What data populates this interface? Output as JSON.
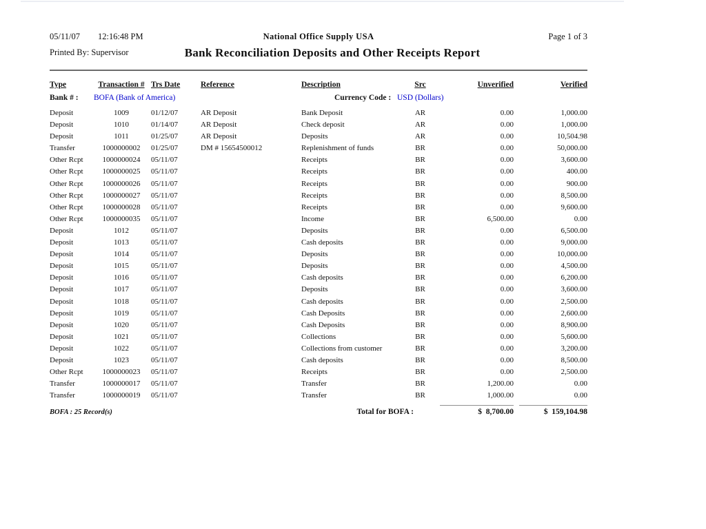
{
  "report": {
    "date": "05/11/07",
    "time": "12:16:48 PM",
    "company": "National Office Supply USA",
    "page": "Page 1 of 3",
    "printed_by": "Printed By: Supervisor",
    "title": "Bank Reconciliation Deposits and Other Receipts Report"
  },
  "colors": {
    "link_blue": "#0000cc",
    "text": "#111111"
  },
  "table": {
    "columns": {
      "type": "Type",
      "txn": "Transaction #",
      "date": "Trs Date",
      "ref": "Reference",
      "desc": "Description",
      "src": "Src",
      "unverified": "Unverified",
      "verified": "Verified"
    },
    "bank_label": "Bank # :",
    "bank_value": "BOFA (Bank of America)",
    "currency_label": "Currency Code :",
    "currency_value": "USD (Dollars)",
    "rows": [
      {
        "type": "Deposit",
        "txn": "1009",
        "date": "01/12/07",
        "ref": "AR Deposit",
        "desc": "Bank Deposit",
        "src": "AR",
        "unverified": "0.00",
        "verified": "1,000.00"
      },
      {
        "type": "Deposit",
        "txn": "1010",
        "date": "01/14/07",
        "ref": "AR Deposit",
        "desc": "Check deposit",
        "src": "AR",
        "unverified": "0.00",
        "verified": "1,000.00"
      },
      {
        "type": "Deposit",
        "txn": "1011",
        "date": "01/25/07",
        "ref": "AR Deposit",
        "desc": "Deposits",
        "src": "AR",
        "unverified": "0.00",
        "verified": "10,504.98"
      },
      {
        "type": "Transfer",
        "txn": "1000000002",
        "date": "01/25/07",
        "ref": "DM # 15654500012",
        "desc": "Replenishment of funds",
        "src": "BR",
        "unverified": "0.00",
        "verified": "50,000.00"
      },
      {
        "type": "Other Rcpt",
        "txn": "1000000024",
        "date": "05/11/07",
        "ref": "",
        "desc": "Receipts",
        "src": "BR",
        "unverified": "0.00",
        "verified": "3,600.00"
      },
      {
        "type": "Other Rcpt",
        "txn": "1000000025",
        "date": "05/11/07",
        "ref": "",
        "desc": "Receipts",
        "src": "BR",
        "unverified": "0.00",
        "verified": "400.00"
      },
      {
        "type": "Other Rcpt",
        "txn": "1000000026",
        "date": "05/11/07",
        "ref": "",
        "desc": "Receipts",
        "src": "BR",
        "unverified": "0.00",
        "verified": "900.00"
      },
      {
        "type": "Other Rcpt",
        "txn": "1000000027",
        "date": "05/11/07",
        "ref": "",
        "desc": "Receipts",
        "src": "BR",
        "unverified": "0.00",
        "verified": "8,500.00"
      },
      {
        "type": "Other Rcpt",
        "txn": "1000000028",
        "date": "05/11/07",
        "ref": "",
        "desc": "Receipts",
        "src": "BR",
        "unverified": "0.00",
        "verified": "9,600.00"
      },
      {
        "type": "Other Rcpt",
        "txn": "1000000035",
        "date": "05/11/07",
        "ref": "",
        "desc": "Income",
        "src": "BR",
        "unverified": "6,500.00",
        "verified": "0.00"
      },
      {
        "type": "Deposit",
        "txn": "1012",
        "date": "05/11/07",
        "ref": "",
        "desc": "Deposits",
        "src": "BR",
        "unverified": "0.00",
        "verified": "6,500.00"
      },
      {
        "type": "Deposit",
        "txn": "1013",
        "date": "05/11/07",
        "ref": "",
        "desc": "Cash deposits",
        "src": "BR",
        "unverified": "0.00",
        "verified": "9,000.00"
      },
      {
        "type": "Deposit",
        "txn": "1014",
        "date": "05/11/07",
        "ref": "",
        "desc": "Deposits",
        "src": "BR",
        "unverified": "0.00",
        "verified": "10,000.00"
      },
      {
        "type": "Deposit",
        "txn": "1015",
        "date": "05/11/07",
        "ref": "",
        "desc": "Deposits",
        "src": "BR",
        "unverified": "0.00",
        "verified": "4,500.00"
      },
      {
        "type": "Deposit",
        "txn": "1016",
        "date": "05/11/07",
        "ref": "",
        "desc": "Cash deposits",
        "src": "BR",
        "unverified": "0.00",
        "verified": "6,200.00"
      },
      {
        "type": "Deposit",
        "txn": "1017",
        "date": "05/11/07",
        "ref": "",
        "desc": "Deposits",
        "src": "BR",
        "unverified": "0.00",
        "verified": "3,600.00"
      },
      {
        "type": "Deposit",
        "txn": "1018",
        "date": "05/11/07",
        "ref": "",
        "desc": "Cash deposits",
        "src": "BR",
        "unverified": "0.00",
        "verified": "2,500.00"
      },
      {
        "type": "Deposit",
        "txn": "1019",
        "date": "05/11/07",
        "ref": "",
        "desc": "Cash Deposits",
        "src": "BR",
        "unverified": "0.00",
        "verified": "2,600.00"
      },
      {
        "type": "Deposit",
        "txn": "1020",
        "date": "05/11/07",
        "ref": "",
        "desc": "Cash Deposits",
        "src": "BR",
        "unverified": "0.00",
        "verified": "8,900.00"
      },
      {
        "type": "Deposit",
        "txn": "1021",
        "date": "05/11/07",
        "ref": "",
        "desc": "Collections",
        "src": "BR",
        "unverified": "0.00",
        "verified": "5,600.00"
      },
      {
        "type": "Deposit",
        "txn": "1022",
        "date": "05/11/07",
        "ref": "",
        "desc": "Collections from customer",
        "src": "BR",
        "unverified": "0.00",
        "verified": "3,200.00"
      },
      {
        "type": "Deposit",
        "txn": "1023",
        "date": "05/11/07",
        "ref": "",
        "desc": "Cash deposits",
        "src": "BR",
        "unverified": "0.00",
        "verified": "8,500.00"
      },
      {
        "type": "Other Rcpt",
        "txn": "1000000023",
        "date": "05/11/07",
        "ref": "",
        "desc": "Receipts",
        "src": "BR",
        "unverified": "0.00",
        "verified": "2,500.00"
      },
      {
        "type": "Transfer",
        "txn": "1000000017",
        "date": "05/11/07",
        "ref": "",
        "desc": "Transfer",
        "src": "BR",
        "unverified": "1,200.00",
        "verified": "0.00"
      },
      {
        "type": "Transfer",
        "txn": "1000000019",
        "date": "05/11/07",
        "ref": "",
        "desc": "Transfer",
        "src": "BR",
        "unverified": "1,000.00",
        "verified": "0.00"
      }
    ],
    "footer": {
      "record_count": "BOFA : 25 Record(s)",
      "total_label": "Total for BOFA :",
      "total_unverified": "$  8,700.00",
      "total_verified": "$  159,104.98"
    }
  }
}
